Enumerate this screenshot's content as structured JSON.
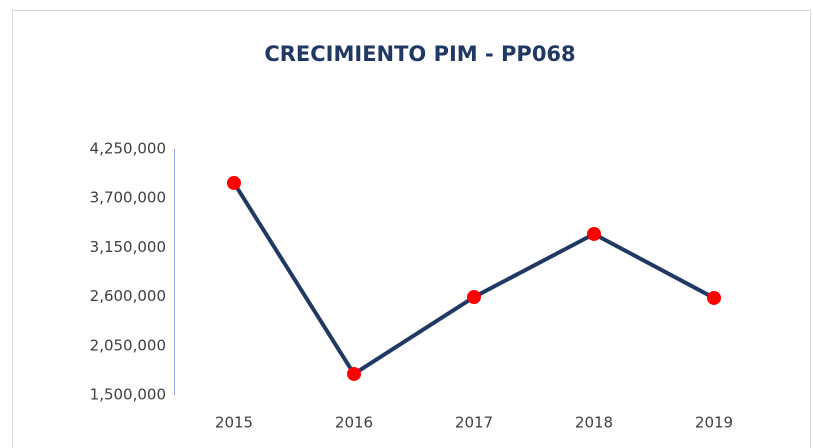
{
  "chart_data": {
    "type": "line",
    "title": "CRECIMIENTO PIM - PP068",
    "categories": [
      "2015",
      "2016",
      "2017",
      "2018",
      "2019"
    ],
    "series": [
      {
        "name": "PIM",
        "color": "#203864",
        "marker_color": "#ff0000",
        "values": [
          3870000,
          1735000,
          2595000,
          3300000,
          2585000
        ]
      }
    ],
    "ylim": [
      1500000,
      4250000
    ],
    "yticks": [
      {
        "value": 1500000,
        "label": "1,500,000"
      },
      {
        "value": 2050000,
        "label": "2,050,000"
      },
      {
        "value": 2600000,
        "label": "2,600,000"
      },
      {
        "value": 3150000,
        "label": "3,150,000"
      },
      {
        "value": 3700000,
        "label": "3,700,000"
      },
      {
        "value": 4250000,
        "label": "4,250,000"
      }
    ],
    "grid": false
  }
}
